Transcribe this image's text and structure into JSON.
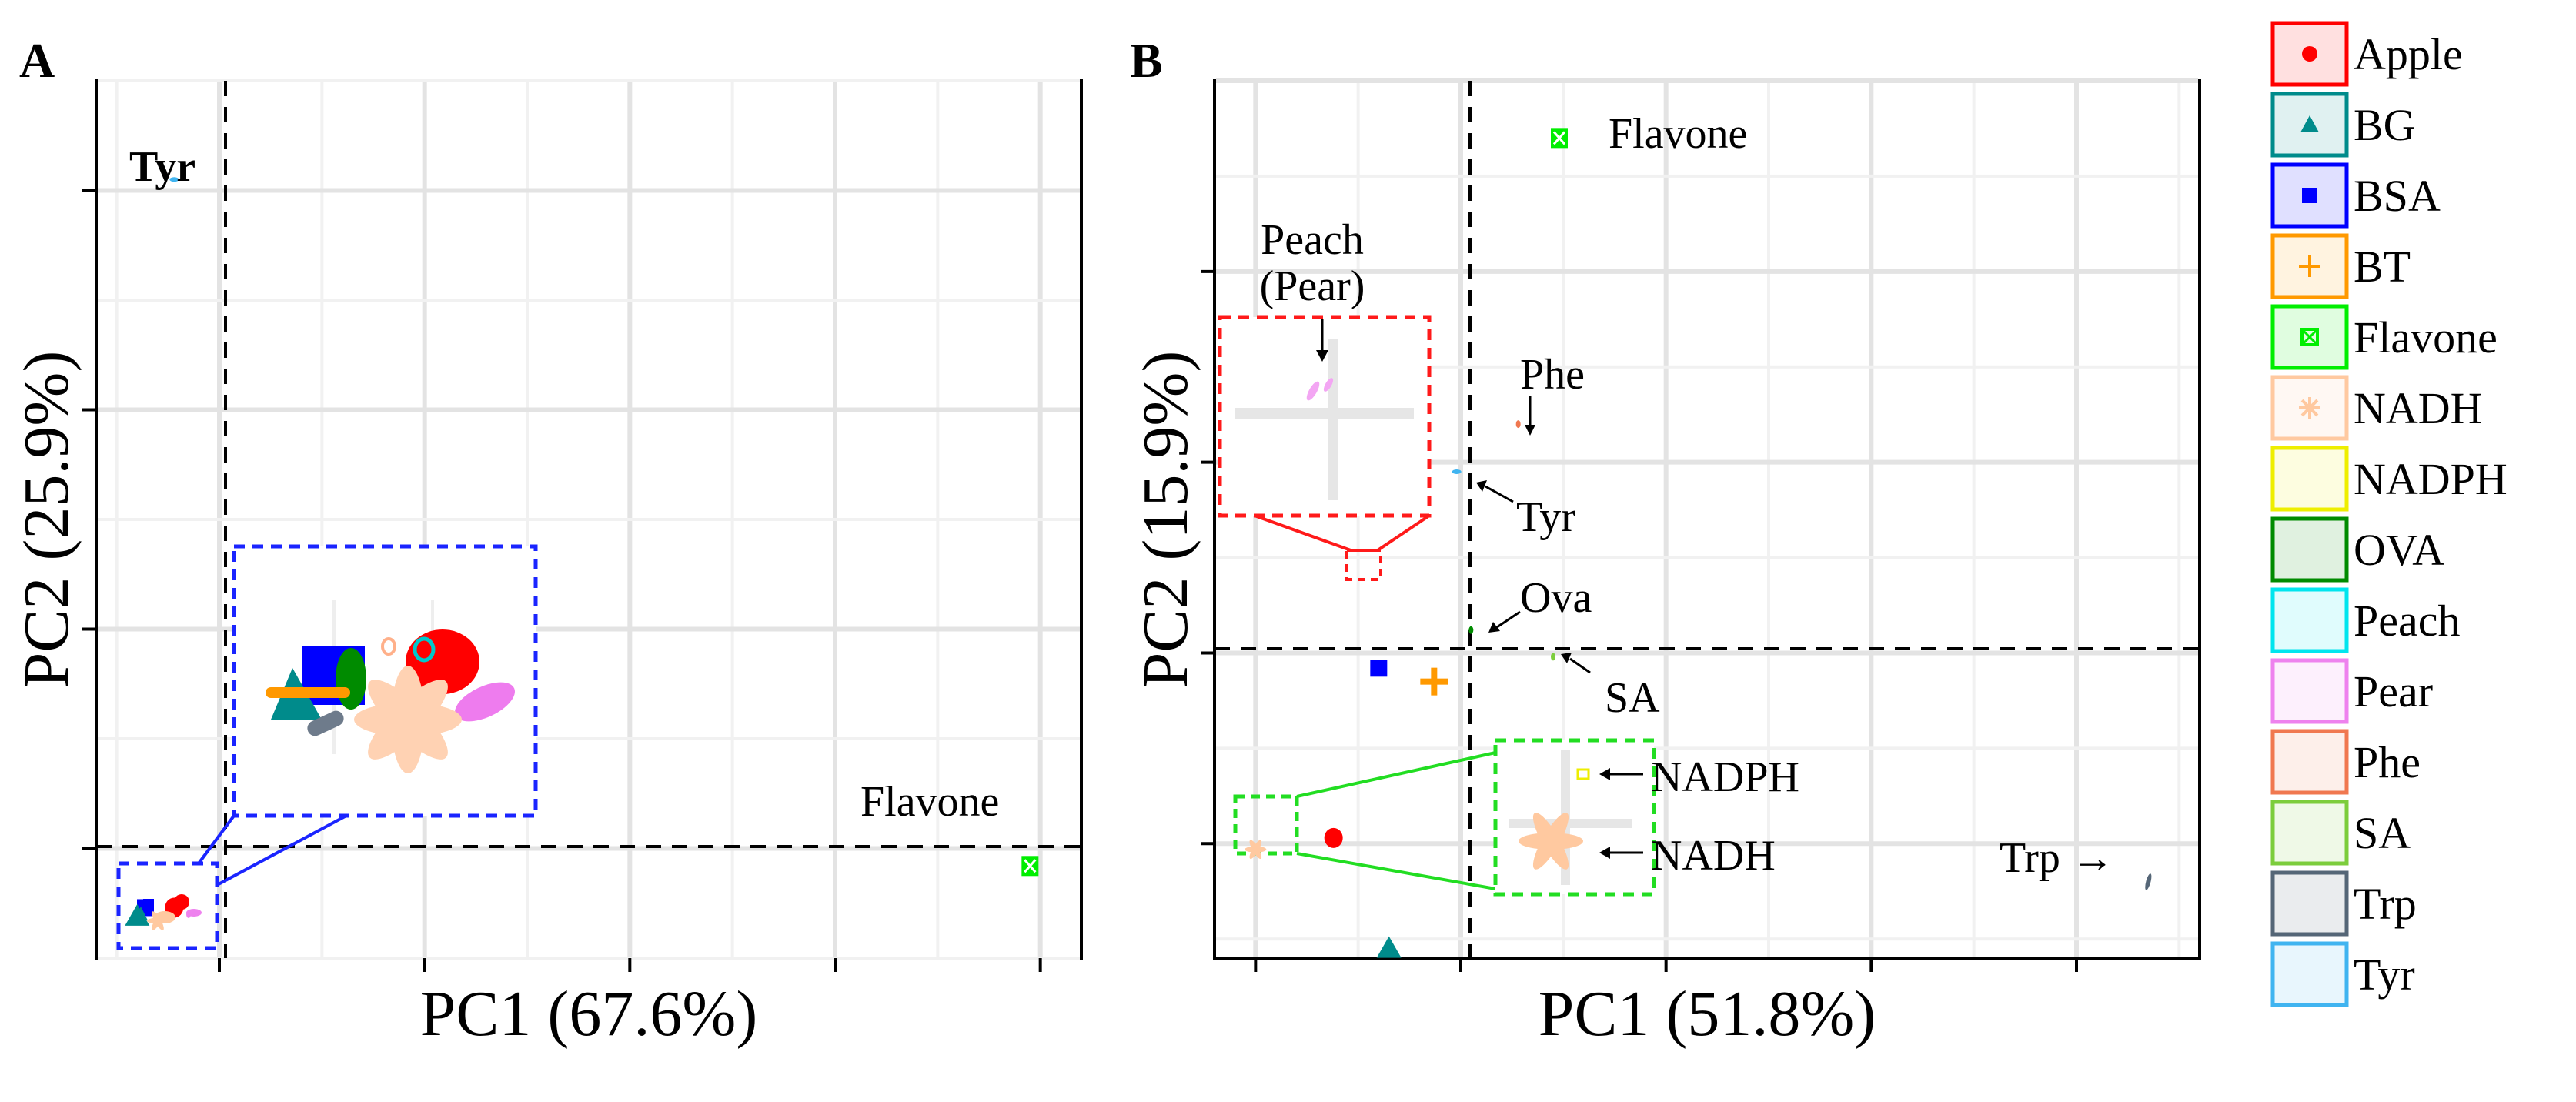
{
  "legend": {
    "entries": [
      {
        "name": "Apple",
        "color": "#ff0000",
        "shape": "circle"
      },
      {
        "name": "BG",
        "color": "#008b8b",
        "shape": "triangle"
      },
      {
        "name": "BSA",
        "color": "#0000ff",
        "shape": "square"
      },
      {
        "name": "BT",
        "color": "#ff9900",
        "shape": "plus"
      },
      {
        "name": "Flavone",
        "color": "#00ee00",
        "shape": "boxed-x"
      },
      {
        "name": "NADH",
        "color": "#ffc9a0",
        "shape": "asterisk"
      },
      {
        "name": "NADPH",
        "color": "#eeee00",
        "shape": "none"
      },
      {
        "name": "OVA",
        "color": "#008b00",
        "shape": "none"
      },
      {
        "name": "Peach",
        "color": "#00e5ee",
        "shape": "none"
      },
      {
        "name": "Pear",
        "color": "#ee82ee",
        "shape": "none"
      },
      {
        "name": "Phe",
        "color": "#f07850",
        "shape": "none"
      },
      {
        "name": "SA",
        "color": "#7ccd3c",
        "shape": "none"
      },
      {
        "name": "Trp",
        "color": "#556677",
        "shape": "none"
      },
      {
        "name": "Tyr",
        "color": "#40b4f0",
        "shape": "none"
      }
    ]
  },
  "chart_data": [
    {
      "panel": "A",
      "type": "scatter",
      "xlabel": "PC1 (67.6%)",
      "ylabel": "PC2 (25.9%)",
      "xlim": [
        -0.6,
        4.2
      ],
      "ylim": [
        -0.5,
        3.5
      ],
      "grid": true,
      "reference_lines": {
        "x": 0,
        "y": 0
      },
      "points": [
        {
          "name": "Tyr",
          "x": -0.22,
          "y": 3.05,
          "color": "#40b4f0"
        },
        {
          "name": "Flavone",
          "x": 3.95,
          "y": -0.08,
          "color": "#00ee00"
        },
        {
          "name": "Apple",
          "x": -0.22,
          "y": -0.27,
          "color": "#ff0000"
        },
        {
          "name": "BSA",
          "x": -0.36,
          "y": -0.27,
          "color": "#0000ff"
        },
        {
          "name": "BG",
          "x": -0.4,
          "y": -0.31,
          "color": "#008b8b"
        },
        {
          "name": "NADH",
          "x": -0.3,
          "y": -0.33,
          "color": "#ffc9a0"
        },
        {
          "name": "Pear",
          "x": -0.15,
          "y": -0.3,
          "color": "#ee82ee"
        }
      ],
      "annotations": [
        "Tyr",
        "Flavone"
      ]
    },
    {
      "panel": "B",
      "type": "scatter",
      "xlabel": "PC1 (51.8%)",
      "ylabel": "PC2 (15.9%)",
      "xlim": [
        -1.2,
        3.6
      ],
      "ylim": [
        -1.6,
        3.0
      ],
      "grid": true,
      "reference_lines": {
        "x": 0,
        "y": 0
      },
      "points": [
        {
          "name": "Flavone",
          "x": 0.48,
          "y": 2.7,
          "color": "#00ee00"
        },
        {
          "name": "Phe",
          "x": 0.28,
          "y": 1.2,
          "color": "#f07850"
        },
        {
          "name": "Tyr",
          "x": -0.02,
          "y": 0.95,
          "color": "#40b4f0"
        },
        {
          "name": "Ova",
          "x": 0.05,
          "y": 0.12,
          "color": "#008b00"
        },
        {
          "name": "SA",
          "x": 0.45,
          "y": -0.02,
          "color": "#7ccd3c"
        },
        {
          "name": "BSA",
          "x": -0.4,
          "y": -0.08,
          "color": "#0000ff"
        },
        {
          "name": "BT",
          "x": -0.13,
          "y": -0.15,
          "color": "#ff9900"
        },
        {
          "name": "Apple",
          "x": -0.62,
          "y": -0.97,
          "color": "#ff0000"
        },
        {
          "name": "NADH",
          "x": -1.0,
          "y": -1.03,
          "color": "#ffc9a0"
        },
        {
          "name": "BG",
          "x": -0.35,
          "y": -1.55,
          "color": "#008b8b"
        },
        {
          "name": "Trp",
          "x": 3.35,
          "y": -1.2,
          "color": "#556677"
        }
      ],
      "annotations": [
        "Flavone",
        "Peach",
        "(Pear)",
        "Phe",
        "Tyr",
        "Ova",
        "SA",
        "NADPH",
        "NADH",
        "Trp →"
      ]
    }
  ],
  "panel_labels": {
    "a": "A",
    "b": "B"
  }
}
